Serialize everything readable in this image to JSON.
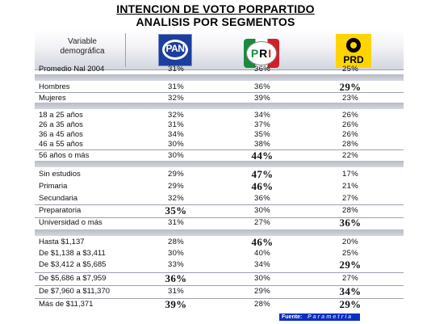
{
  "title_line1": "INTENCION DE VOTO PORPARTIDO",
  "title_line2": "ANALISIS POR SEGMENTOS",
  "variable_label": "Variable\ndemográfica",
  "parties": {
    "pan": "PAN",
    "pri_p": "P",
    "pri_r": "R",
    "pri_i": "I",
    "prd": "PRD"
  },
  "rows": [
    {
      "label": "Promedio Nal 2004",
      "pan": "31%",
      "pri": "36%",
      "prd": "25%"
    },
    {
      "label": "Hombres",
      "pan": "31%",
      "pri": "36%",
      "prd": "29%"
    },
    {
      "label": "Mujeres",
      "pan": "32%",
      "pri": "39%",
      "prd": "23%"
    },
    {
      "label": "18 a 25 años",
      "pan": "32%",
      "pri": "34%",
      "prd": "26%"
    },
    {
      "label": "26 a 35 años",
      "pan": "31%",
      "pri": "37%",
      "prd": "26%"
    },
    {
      "label": "36 a 45 años",
      "pan": "34%",
      "pri": "35%",
      "prd": "26%"
    },
    {
      "label": "46 a 55 años",
      "pan": "30%",
      "pri": "38%",
      "prd": "28%"
    },
    {
      "label": "56 años o más",
      "pan": "30%",
      "pri": "44%",
      "prd": "22%"
    },
    {
      "label": "Sin estudios",
      "pan": "29%",
      "pri": "47%",
      "prd": "17%"
    },
    {
      "label": "Primaria",
      "pan": "29%",
      "pri": "46%",
      "prd": "21%"
    },
    {
      "label": "Secundaria",
      "pan": "32%",
      "pri": "36%",
      "prd": "27%"
    },
    {
      "label": "Preparatoria",
      "pan": "35%",
      "pri": "30%",
      "prd": "28%"
    },
    {
      "label": "Universidad o más",
      "pan": "31%",
      "pri": "27%",
      "prd": "36%"
    },
    {
      "label": "Hasta $1,137",
      "pan": "28%",
      "pri": "46%",
      "prd": "20%"
    },
    {
      "label": "De $1,138 a $3,411",
      "pan": "30%",
      "pri": "40%",
      "prd": "25%"
    },
    {
      "label": "De $3,412 a $5,685",
      "pan": "33%",
      "pri": "34%",
      "prd": "29%"
    },
    {
      "label": "De $5,686 a $7,959",
      "pan": "36%",
      "pri": "30%",
      "prd": "27%"
    },
    {
      "label": "De $7,960 a $11,370",
      "pan": "31%",
      "pri": "29%",
      "prd": "34%"
    },
    {
      "label": "Más de $11,371",
      "pan": "39%",
      "pri": "28%",
      "prd": "29%"
    }
  ],
  "footer": {
    "label": "Fuente:",
    "source": "Parametría"
  }
}
